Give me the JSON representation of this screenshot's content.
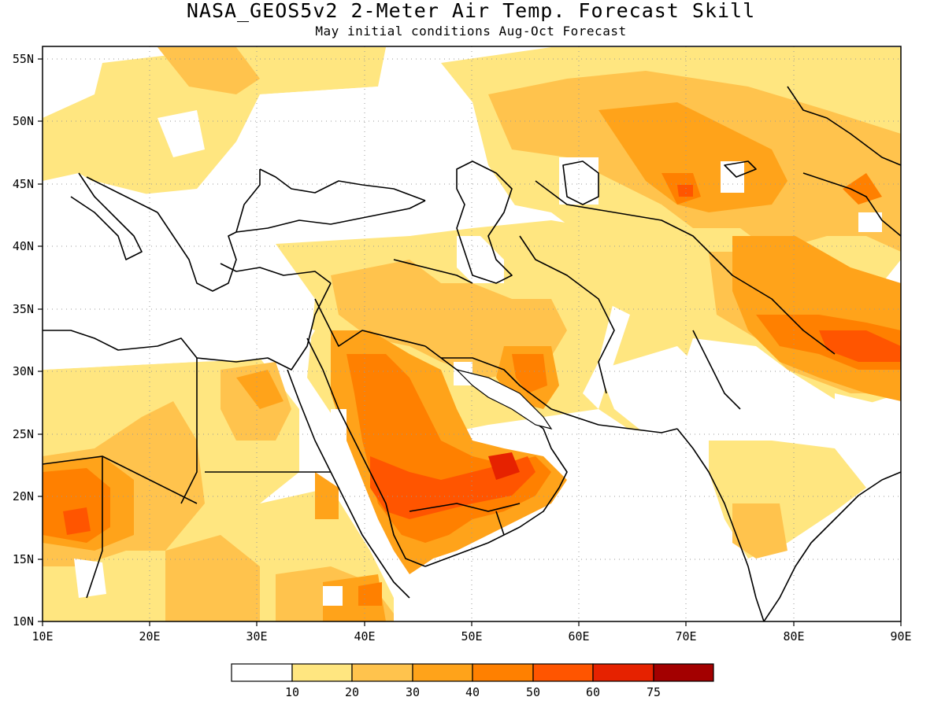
{
  "title": "NASA_GEOS5v2 2-Meter Air Temp. Forecast Skill",
  "subtitle": "May initial conditions  Aug-Oct Forecast",
  "map": {
    "lon_range": [
      10,
      90
    ],
    "lat_range": [
      10,
      56
    ],
    "lon_ticks": [
      "10E",
      "20E",
      "30E",
      "40E",
      "50E",
      "60E",
      "70E",
      "80E",
      "90E"
    ],
    "lat_ticks": [
      "55N",
      "50N",
      "45N",
      "40N",
      "35N",
      "30N",
      "25N",
      "20N",
      "15N",
      "10N"
    ],
    "grid": true
  },
  "legend": {
    "levels": [
      "10",
      "20",
      "30",
      "40",
      "50",
      "60",
      "75"
    ],
    "colors": [
      "#ffffff",
      "#ffe680",
      "#ffc34d",
      "#ffa31a",
      "#ff8000",
      "#ff5500",
      "#e62200",
      "#a30000"
    ]
  }
}
